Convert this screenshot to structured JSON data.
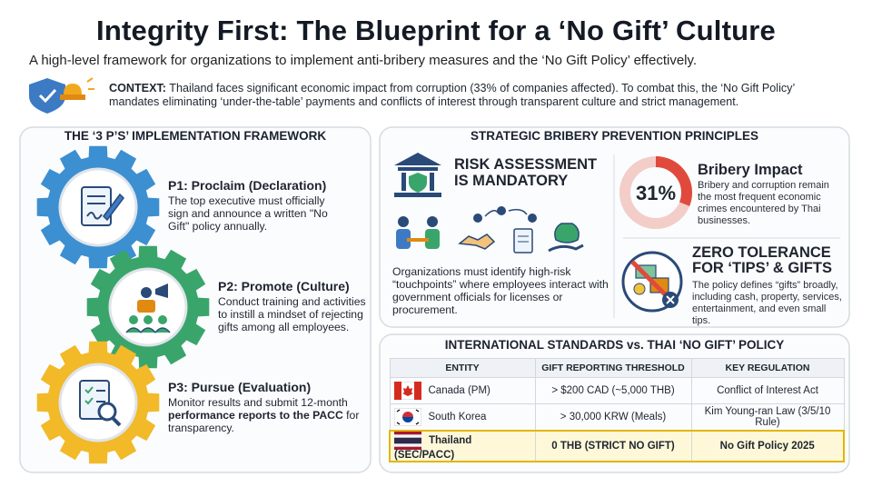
{
  "header": {
    "title": "Integrity First: The Blueprint for a ‘No Gift’ Culture",
    "subtitle": "A high-level framework for organizations to implement anti-bribery measures and the ‘No Gift Policy’ effectively."
  },
  "context": {
    "label": "CONTEXT:",
    "text": "Thailand faces significant economic impact from corruption (33% of companies affected). To combat this, the ‘No Gift Policy’ mandates eliminating ‘under-the-table’ payments and conflicts of interest through transparent culture and strict management."
  },
  "framework": {
    "heading": "THE ‘3 P’S’ IMPLEMENTATION FRAMEWORK",
    "steps": [
      {
        "title": "P1: Proclaim (Declaration)",
        "text": "The top executive must officially sign and announce a written \"No Gift\" policy annually."
      },
      {
        "title": "P2: Promote (Culture)",
        "text": "Conduct training and activities to instill a mindset of rejecting gifts among all employees."
      },
      {
        "title": "P3: Pursue (Evaluation)",
        "text": "Monitor results and submit 12-month",
        "text_bold": "performance reports to the PACC",
        "text_after": "for transparency."
      }
    ]
  },
  "principles": {
    "heading": "STRATEGIC BRIBERY PREVENTION PRINCIPLES",
    "risk": {
      "title": "RISK ASSESSMENT IS MANDATORY",
      "text": "Organizations must identify high-risk “touchpoints” where employees interact with government officials for licenses or procurement."
    },
    "impact": {
      "value": 31,
      "label": "31%",
      "title": "Bribery Impact",
      "text": "Bribery and corruption remain the most frequent economic crimes encountered by Thai businesses."
    },
    "zero": {
      "title": "ZERO TOLERANCE FOR ‘TIPS’ & GIFTS",
      "text": "The policy defines “gifts” broadly, including cash, property, services, entertainment, and even small tips."
    }
  },
  "standards": {
    "heading": "INTERNATIONAL STANDARDS vs. THAI ‘NO GIFT’ POLICY",
    "columns": [
      "ENTITY",
      "GIFT REPORTING THRESHOLD",
      "KEY REGULATION"
    ],
    "rows": [
      [
        "Canada (PM)",
        "> $200 CAD (~5,000 THB)",
        "Conflict of Interest Act"
      ],
      [
        "South Korea",
        "> 30,000 KRW (Meals)",
        "Kim Young-ran Law (3/5/10 Rule)"
      ],
      [
        "Thailand (SEC/PACC)",
        "0 THB (STRICT NO GIFT)",
        "No Gift Policy 2025"
      ]
    ]
  }
}
